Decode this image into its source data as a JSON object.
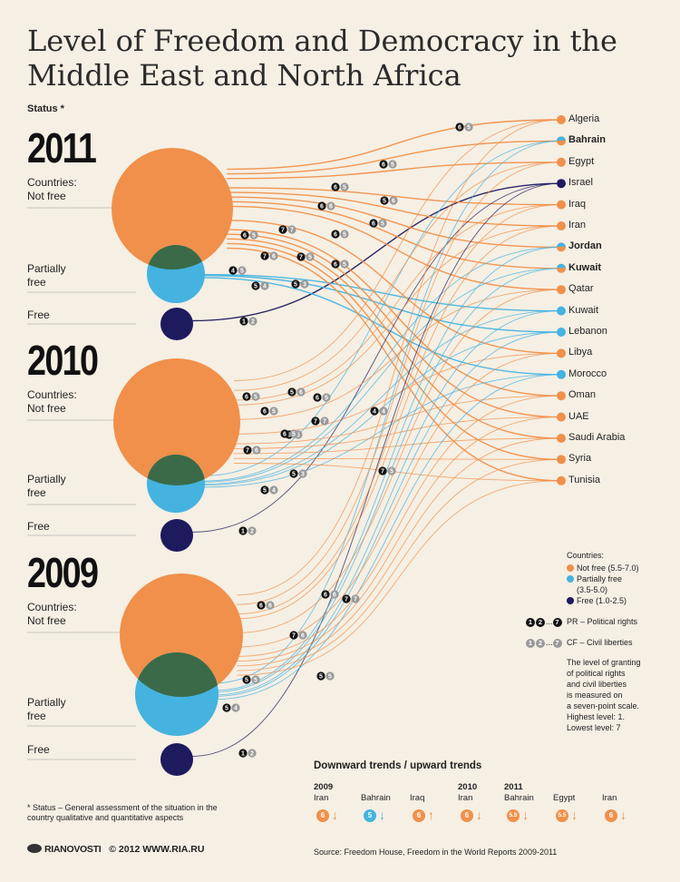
{
  "title": "Level of Freedom and Democracy in the Middle East and North Africa",
  "status_label": "Status *",
  "years": [
    {
      "year": "2011",
      "not_free": "Countries:\nNot free",
      "partially_free": "Partially\nfree",
      "free": "Free"
    },
    {
      "year": "2010",
      "not_free": "Countries:\nNot free",
      "partially_free": "Partially\nfree",
      "free": "Free"
    },
    {
      "year": "2009",
      "not_free": "Countries:\nNot free",
      "partially_free": "Partially\nfree",
      "free": "Free"
    }
  ],
  "countries": [
    {
      "name": "Algeria",
      "status": "not_free",
      "bold": false
    },
    {
      "name": "Bahrain",
      "status": "not_free",
      "bold": true,
      "was": "partially_free"
    },
    {
      "name": "Egypt",
      "status": "not_free",
      "bold": false
    },
    {
      "name": "Israel",
      "status": "free",
      "bold": false
    },
    {
      "name": "Iraq",
      "status": "not_free",
      "bold": false
    },
    {
      "name": "Iran",
      "status": "not_free",
      "bold": false
    },
    {
      "name": "Jordan",
      "status": "not_free",
      "bold": true,
      "was": "partially_free"
    },
    {
      "name": "Kuwait",
      "status": "not_free",
      "bold": true,
      "was": "partially_free"
    },
    {
      "name": "Qatar",
      "status": "not_free",
      "bold": false
    },
    {
      "name": "Kuwait",
      "status": "partially_free",
      "bold": false
    },
    {
      "name": "Lebanon",
      "status": "partially_free",
      "bold": false
    },
    {
      "name": "Libya",
      "status": "not_free",
      "bold": false
    },
    {
      "name": "Morocco",
      "status": "partially_free",
      "bold": false
    },
    {
      "name": "Oman",
      "status": "not_free",
      "bold": false
    },
    {
      "name": "UAE",
      "status": "not_free",
      "bold": false
    },
    {
      "name": "Saudi Arabia",
      "status": "not_free",
      "bold": false
    },
    {
      "name": "Syria",
      "status": "not_free",
      "bold": false
    },
    {
      "name": "Tunisia",
      "status": "not_free",
      "bold": false
    }
  ],
  "legend": {
    "countries_title": "Countries:",
    "not_free": "Not free (5.5-7.0)",
    "partially_free": "Partially free\n(3.5-5.0)",
    "free": "Free (1.0-2.5)",
    "pr": "PR – Political rights",
    "cf": "CF – Civil liberties",
    "pr_first": "1",
    "pr_second": "2",
    "pr_last": "7",
    "cf_first": "1",
    "cf_second": "2",
    "cf_last": "7",
    "ellipsis": "...",
    "note": "The level of granting\nof political rights\nand civil liberties\nis measured on\na seven-point scale.\nHighest level: 1.\nLowest level: 7"
  },
  "trends": {
    "title": "Downward trends / upward trends",
    "items": [
      {
        "year": "2009",
        "country": "Iran",
        "value": "6",
        "status": "not_free",
        "dir": "down"
      },
      {
        "year": "",
        "country": "Bahrain",
        "value": "5",
        "status": "partially_free",
        "dir": "down"
      },
      {
        "year": "",
        "country": "Iraq",
        "value": "6",
        "status": "not_free",
        "dir": "up"
      },
      {
        "year": "2010",
        "country": "Iran",
        "value": "6",
        "status": "not_free",
        "dir": "down"
      },
      {
        "year": "2011",
        "country": "Bahrain",
        "value": "5.5",
        "status": "not_free",
        "dir": "down"
      },
      {
        "year": "",
        "country": "Egypt",
        "value": "5.5",
        "status": "not_free",
        "dir": "down"
      },
      {
        "year": "",
        "country": "Iran",
        "value": "6",
        "status": "not_free",
        "dir": "down"
      }
    ]
  },
  "footnote": "* Status – General assessment of the situation in the country qualitative and quantitative aspects",
  "credit": {
    "logo": "RIANOVOSTI",
    "copyright": "© 2012 WWW.RIA.RU"
  },
  "source": "Source: Freedom House, Freedom in the World Reports 2009-2011",
  "colors": {
    "not_free": "#f0904a",
    "partially_free": "#45b3e0",
    "free": "#1e1a5e",
    "overlap": "#3a6a48",
    "background": "#f5efe4"
  },
  "ratings": {
    "2011": [
      {
        "pr": "6",
        "cf": "5"
      },
      {
        "pr": "6",
        "cf": "5"
      },
      {
        "pr": "6",
        "cf": "5"
      },
      {
        "pr": "5",
        "cf": "6"
      },
      {
        "pr": "6",
        "cf": "6"
      },
      {
        "pr": "6",
        "cf": "5"
      },
      {
        "pr": "7",
        "cf": "7"
      },
      {
        "pr": "6",
        "cf": "5"
      },
      {
        "pr": "6",
        "cf": "5"
      },
      {
        "pr": "7",
        "cf": "6"
      },
      {
        "pr": "7",
        "cf": "5"
      },
      {
        "pr": "6",
        "cf": "5"
      },
      {
        "pr": "4",
        "cf": "5"
      },
      {
        "pr": "5",
        "cf": "4"
      },
      {
        "pr": "5",
        "cf": "3"
      },
      {
        "pr": "1",
        "cf": "2"
      }
    ],
    "2010": [
      {
        "pr": "6",
        "cf": "5"
      },
      {
        "pr": "5",
        "cf": "6"
      },
      {
        "pr": "6",
        "cf": "5"
      },
      {
        "pr": "6",
        "cf": "5"
      },
      {
        "pr": "6",
        "cf": "5"
      },
      {
        "pr": "7",
        "cf": "7"
      },
      {
        "pr": "6",
        "cf": "5"
      },
      {
        "pr": "7",
        "cf": "6"
      },
      {
        "pr": "7",
        "cf": "5"
      },
      {
        "pr": "5",
        "cf": "3"
      },
      {
        "pr": "5",
        "cf": "4"
      },
      {
        "pr": "4",
        "cf": "4"
      },
      {
        "pr": "1",
        "cf": "2"
      }
    ],
    "2009": [
      {
        "pr": "6",
        "cf": "6"
      },
      {
        "pr": "6",
        "cf": "6"
      },
      {
        "pr": "7",
        "cf": "7"
      },
      {
        "pr": "7",
        "cf": "6"
      },
      {
        "pr": "5",
        "cf": "5"
      },
      {
        "pr": "5",
        "cf": "5"
      },
      {
        "pr": "5",
        "cf": "4"
      },
      {
        "pr": "1",
        "cf": "2"
      }
    ]
  }
}
